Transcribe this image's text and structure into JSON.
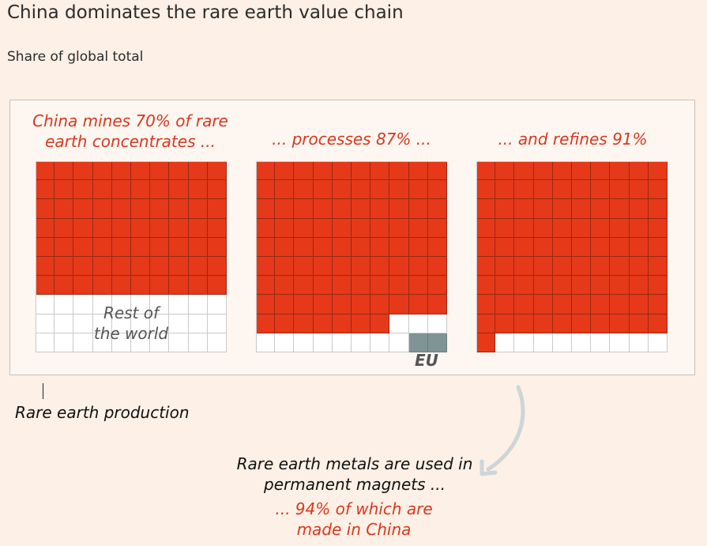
{
  "title": "China dominates the rare earth value chain",
  "subtitle": "Share of global total",
  "chart_data": {
    "type": "waffle",
    "grid_size": [
      10,
      10
    ],
    "panels": [
      {
        "heading": "China mines 70% of rare earth concentrates ...",
        "china_share": 70,
        "eu_share": 0,
        "other_label": "Rest of the world"
      },
      {
        "heading": "... processes 87% ...",
        "china_share": 87,
        "eu_share": 2,
        "eu_label": "EU"
      },
      {
        "heading": "... and refines 91%",
        "china_share": 91,
        "eu_share": 0
      }
    ],
    "colors": {
      "china": "#e5391a",
      "rest_of_world": "#ffffff",
      "eu": "#7f9595"
    },
    "stage_label": "Rare earth production",
    "magnet_note": "Rare earth metals are used in permanent magnets ...",
    "magnet_share_note": "... 94% of which are made in China",
    "magnet_china_share": 94
  }
}
